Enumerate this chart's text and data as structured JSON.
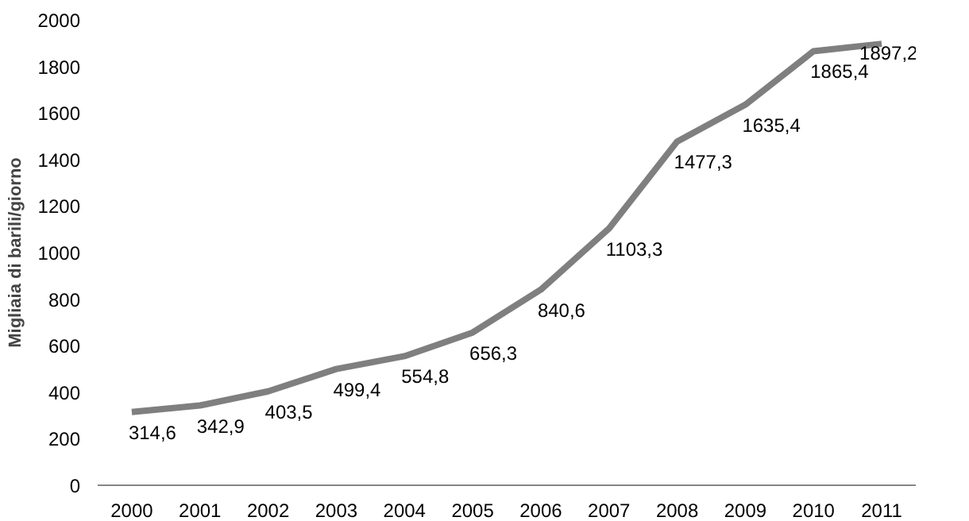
{
  "chart_data": {
    "type": "line",
    "ylabel": "Migliaia di barili/giorno",
    "categories": [
      "2000",
      "2001",
      "2002",
      "2003",
      "2004",
      "2005",
      "2006",
      "2007",
      "2008",
      "2009",
      "2010",
      "2011"
    ],
    "series": [
      {
        "color": "#7f7f7f",
        "values": [
          314.6,
          342.9,
          403.5,
          499.4,
          554.8,
          656.3,
          840.6,
          1103.3,
          1477.3,
          1635.4,
          1865.4,
          1897.2
        ],
        "value_labels": [
          "314,6",
          "342,9",
          "403,5",
          "499,4",
          "554,8",
          "656,3",
          "840,6",
          "1103,3",
          "1477,3",
          "1635,4",
          "1865,4",
          "1897,2"
        ]
      }
    ],
    "ylim": [
      0,
      2000
    ],
    "yticks": [
      0,
      200,
      400,
      600,
      800,
      1000,
      1200,
      1400,
      1600,
      1800,
      2000
    ],
    "grid": false,
    "marker": "none",
    "line_style": "solid"
  }
}
